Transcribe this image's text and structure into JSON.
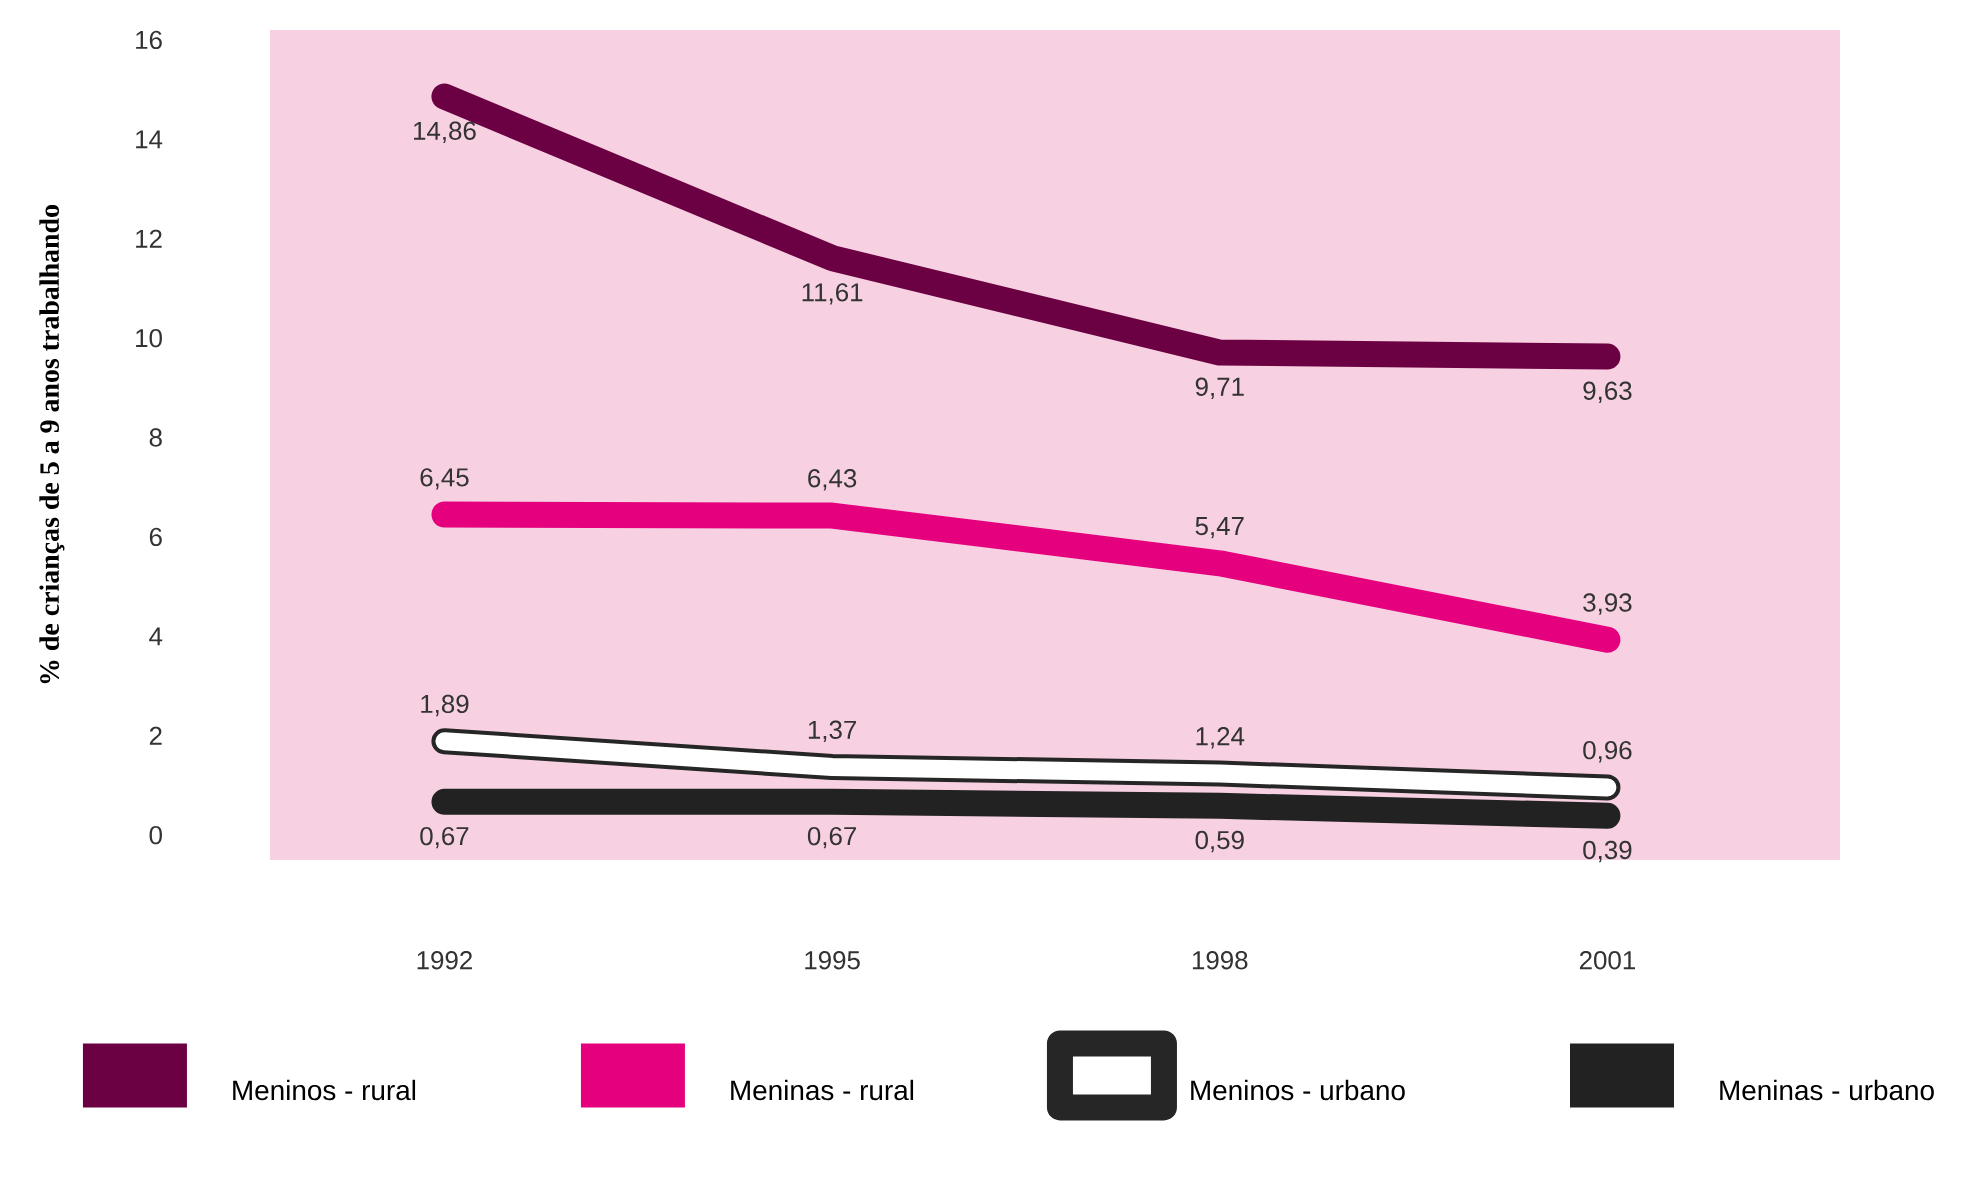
{
  "chart_data": {
    "type": "line",
    "ylabel": "% de crianças de 5 a 9 anos trabalhando",
    "categories": [
      "1992",
      "1995",
      "1998",
      "2001"
    ],
    "series": [
      {
        "name": "Meninos - rural",
        "color": "#6b0042",
        "values": [
          14.86,
          11.61,
          9.71,
          9.63
        ],
        "value_labels": [
          "14,86",
          "11,61",
          "9,71",
          "9,63"
        ]
      },
      {
        "name": "Meninas - rural",
        "color": "#e5007d",
        "values": [
          6.45,
          6.43,
          5.47,
          3.93
        ],
        "value_labels": [
          "6,45",
          "6,43",
          "5,47",
          "3,93"
        ]
      },
      {
        "name": "Meninos - urbano",
        "color": "#ffffff",
        "values": [
          1.89,
          1.37,
          1.24,
          0.96
        ],
        "value_labels": [
          "1,89",
          "1,37",
          "1,24",
          "0,96"
        ]
      },
      {
        "name": "Meninas - urbano",
        "color": "#222222",
        "values": [
          0.67,
          0.67,
          0.59,
          0.39
        ],
        "value_labels": [
          "0,67",
          "0,67",
          "0,59",
          "0,39"
        ]
      }
    ],
    "ylim": [
      -0.5,
      16.2
    ],
    "yticks": [
      0,
      2,
      4,
      6,
      8,
      10,
      12,
      14,
      16
    ],
    "legend": "bottom",
    "marker": "none",
    "line_style": "solid"
  }
}
